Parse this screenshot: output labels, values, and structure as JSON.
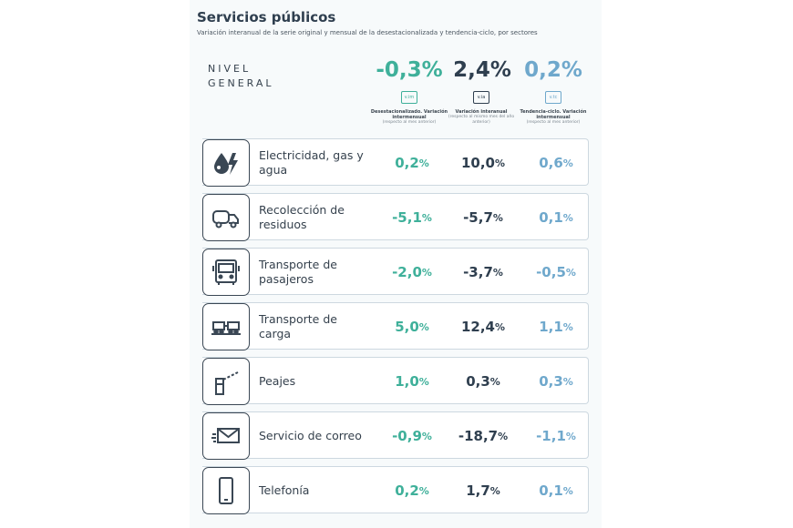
{
  "header": {
    "title": "Servicios públicos",
    "subtitle": "Variación interanual de la serie original y mensual de la desestacionalizada y tendencia-ciclo, por sectores"
  },
  "nivel_general": {
    "label_line1": "NIVEL",
    "label_line2": "GENERAL",
    "desestacionalizado": "-0,3%",
    "interanual": "2,4%",
    "tendencia": "0,2%"
  },
  "columns": [
    {
      "badge": "v.im",
      "title": "Desestacionalizado. Variación intermensual",
      "note": "(respecto al mes anterior)",
      "color": "#3fb09a"
    },
    {
      "badge": "v.ia",
      "title": "Variación interanual",
      "note": "(respecto al mismo mes del año anterior)",
      "color": "#2f3f4f"
    },
    {
      "badge": "v.tc",
      "title": "Tendencia-ciclo. Variación intermensual",
      "note": "(respecto al mes anterior)",
      "color": "#6fa8cc"
    }
  ],
  "percent_sign": "%",
  "sectors": [
    {
      "icon": "utilities-icon",
      "label": "Electricidad, gas y agua",
      "v1": "0,2",
      "v2": "10,0",
      "v3": "0,6"
    },
    {
      "icon": "garbage-truck-icon",
      "label": "Recolección de residuos",
      "v1": "-5,1",
      "v2": "-5,7",
      "v3": "0,1"
    },
    {
      "icon": "bus-icon",
      "label": "Transporte de pasajeros",
      "v1": "-2,0",
      "v2": "-3,7",
      "v3": "-0,5"
    },
    {
      "icon": "freight-train-icon",
      "label": "Transporte de carga",
      "v1": "5,0",
      "v2": "12,4",
      "v3": "1,1"
    },
    {
      "icon": "toll-barrier-icon",
      "label": "Peajes",
      "v1": "1,0",
      "v2": "0,3",
      "v3": "0,3"
    },
    {
      "icon": "mail-icon",
      "label": "Servicio de correo",
      "v1": "-0,9",
      "v2": "-18,7",
      "v3": "-1,1"
    },
    {
      "icon": "phone-icon",
      "label": "Telefonía",
      "v1": "0,2",
      "v2": "1,7",
      "v3": "0,1"
    }
  ]
}
